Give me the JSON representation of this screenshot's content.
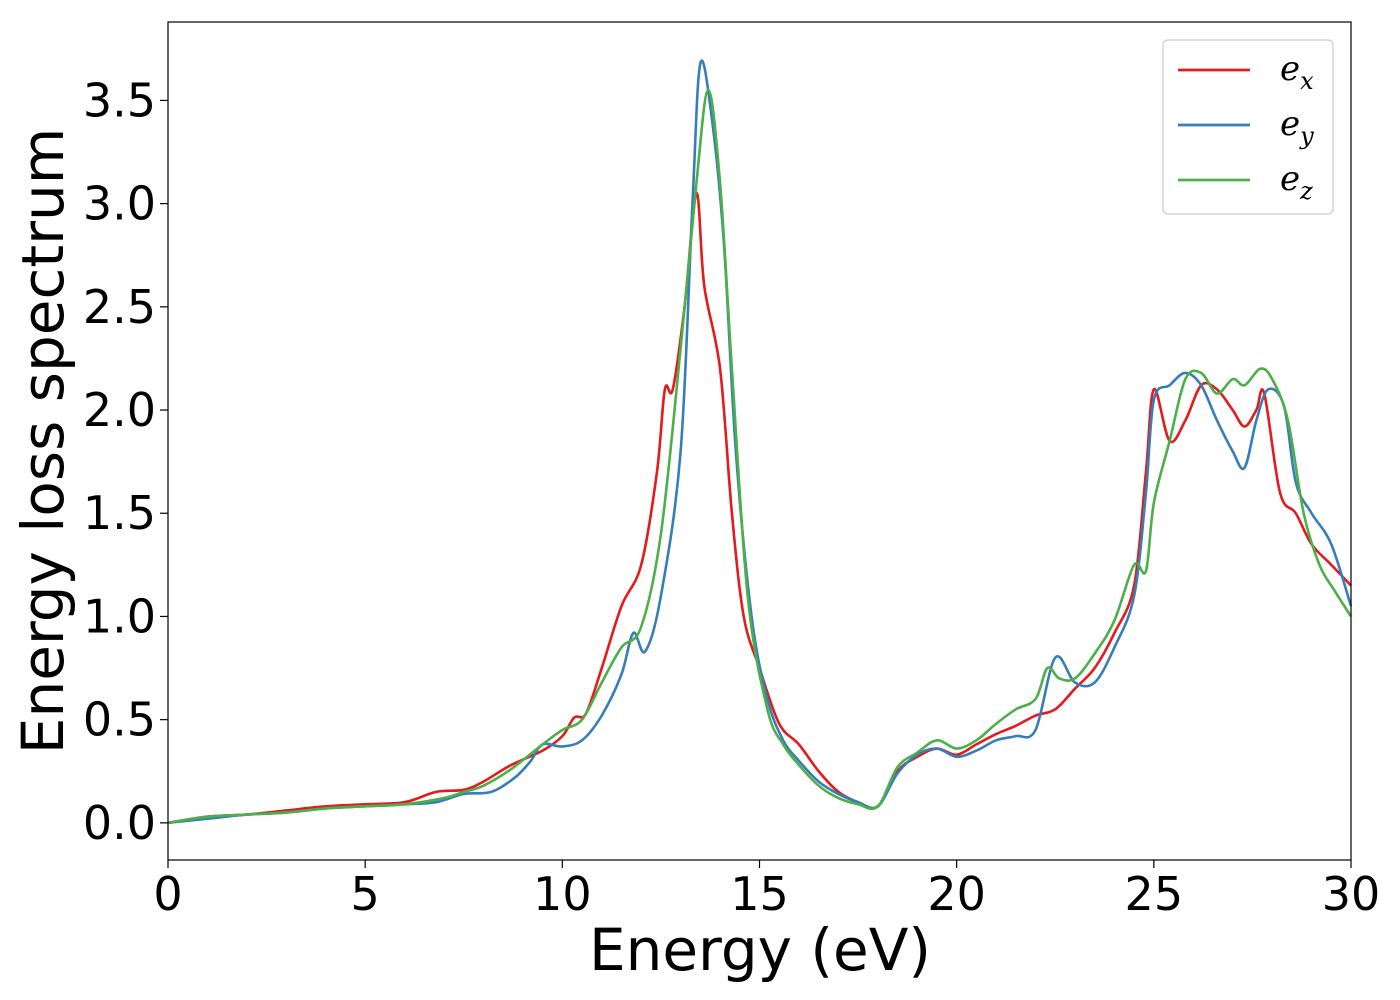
{
  "chart_data": {
    "type": "line",
    "xlabel": "Energy (eV)",
    "ylabel": "Energy loss spectrum",
    "xlim": [
      0,
      30
    ],
    "ylim": [
      -0.18,
      3.88
    ],
    "x_ticks": [
      "0",
      "5",
      "10",
      "15",
      "20",
      "25",
      "30"
    ],
    "y_ticks": [
      "0.0",
      "0.5",
      "1.0",
      "1.5",
      "2.0",
      "2.5",
      "3.0",
      "3.5"
    ],
    "grid": false,
    "legend_position": "top-right",
    "series": [
      {
        "name_base": "e",
        "name_sub": "x",
        "color": "#e41a1c",
        "points": [
          [
            0,
            0.0
          ],
          [
            1,
            0.03
          ],
          [
            2,
            0.04
          ],
          [
            3,
            0.06
          ],
          [
            4,
            0.08
          ],
          [
            5,
            0.09
          ],
          [
            6,
            0.1
          ],
          [
            6.8,
            0.15
          ],
          [
            7.5,
            0.16
          ],
          [
            8,
            0.2
          ],
          [
            8.7,
            0.28
          ],
          [
            9.5,
            0.35
          ],
          [
            10,
            0.42
          ],
          [
            10.3,
            0.51
          ],
          [
            10.6,
            0.53
          ],
          [
            11,
            0.75
          ],
          [
            11.5,
            1.05
          ],
          [
            12,
            1.25
          ],
          [
            12.4,
            1.7
          ],
          [
            12.6,
            2.1
          ],
          [
            12.8,
            2.1
          ],
          [
            13.1,
            2.5
          ],
          [
            13.4,
            3.05
          ],
          [
            13.6,
            2.6
          ],
          [
            14,
            2.2
          ],
          [
            14.3,
            1.5
          ],
          [
            14.6,
            1.0
          ],
          [
            15,
            0.75
          ],
          [
            15.5,
            0.48
          ],
          [
            16,
            0.38
          ],
          [
            16.5,
            0.25
          ],
          [
            17,
            0.15
          ],
          [
            17.5,
            0.1
          ],
          [
            18,
            0.08
          ],
          [
            18.5,
            0.25
          ],
          [
            19,
            0.32
          ],
          [
            19.5,
            0.36
          ],
          [
            20,
            0.33
          ],
          [
            20.5,
            0.38
          ],
          [
            21,
            0.43
          ],
          [
            21.5,
            0.47
          ],
          [
            22,
            0.52
          ],
          [
            22.5,
            0.55
          ],
          [
            23,
            0.65
          ],
          [
            23.5,
            0.75
          ],
          [
            24,
            0.92
          ],
          [
            24.5,
            1.15
          ],
          [
            24.8,
            1.7
          ],
          [
            25,
            2.1
          ],
          [
            25.4,
            1.85
          ],
          [
            25.8,
            1.95
          ],
          [
            26.2,
            2.12
          ],
          [
            26.6,
            2.1
          ],
          [
            27,
            2.0
          ],
          [
            27.3,
            1.92
          ],
          [
            27.6,
            2.0
          ],
          [
            27.8,
            2.08
          ],
          [
            28.2,
            1.6
          ],
          [
            28.6,
            1.5
          ],
          [
            29,
            1.35
          ],
          [
            29.5,
            1.25
          ],
          [
            30,
            1.15
          ]
        ]
      },
      {
        "name_base": "e",
        "name_sub": "y",
        "color": "#377eb8",
        "points": [
          [
            0,
            0.0
          ],
          [
            1,
            0.02
          ],
          [
            2,
            0.04
          ],
          [
            3,
            0.05
          ],
          [
            4,
            0.07
          ],
          [
            5,
            0.08
          ],
          [
            6,
            0.09
          ],
          [
            6.8,
            0.1
          ],
          [
            7.5,
            0.14
          ],
          [
            8.2,
            0.15
          ],
          [
            8.8,
            0.22
          ],
          [
            9.2,
            0.3
          ],
          [
            9.5,
            0.38
          ],
          [
            10,
            0.37
          ],
          [
            10.5,
            0.4
          ],
          [
            11,
            0.52
          ],
          [
            11.5,
            0.72
          ],
          [
            11.8,
            0.92
          ],
          [
            12.1,
            0.83
          ],
          [
            12.5,
            1.1
          ],
          [
            13,
            1.8
          ],
          [
            13.3,
            3.0
          ],
          [
            13.5,
            3.68
          ],
          [
            13.8,
            3.4
          ],
          [
            14.1,
            2.8
          ],
          [
            14.4,
            1.8
          ],
          [
            14.8,
            1.0
          ],
          [
            15.2,
            0.6
          ],
          [
            15.6,
            0.4
          ],
          [
            16,
            0.3
          ],
          [
            16.5,
            0.2
          ],
          [
            17,
            0.14
          ],
          [
            17.5,
            0.1
          ],
          [
            18,
            0.08
          ],
          [
            18.5,
            0.24
          ],
          [
            19,
            0.33
          ],
          [
            19.5,
            0.36
          ],
          [
            20,
            0.32
          ],
          [
            20.5,
            0.35
          ],
          [
            21,
            0.4
          ],
          [
            21.5,
            0.42
          ],
          [
            22,
            0.45
          ],
          [
            22.5,
            0.8
          ],
          [
            23,
            0.68
          ],
          [
            23.5,
            0.68
          ],
          [
            24,
            0.85
          ],
          [
            24.5,
            1.1
          ],
          [
            24.8,
            1.6
          ],
          [
            25,
            2.05
          ],
          [
            25.4,
            2.12
          ],
          [
            25.8,
            2.18
          ],
          [
            26.2,
            2.12
          ],
          [
            26.6,
            1.95
          ],
          [
            27,
            1.8
          ],
          [
            27.3,
            1.72
          ],
          [
            27.6,
            1.95
          ],
          [
            27.9,
            2.1
          ],
          [
            28.3,
            2.02
          ],
          [
            28.6,
            1.65
          ],
          [
            29,
            1.5
          ],
          [
            29.5,
            1.35
          ],
          [
            30,
            1.05
          ]
        ]
      },
      {
        "name_base": "e",
        "name_sub": "z",
        "color": "#4daf4a",
        "points": [
          [
            0,
            0.0
          ],
          [
            1,
            0.03
          ],
          [
            2,
            0.04
          ],
          [
            3,
            0.05
          ],
          [
            4,
            0.07
          ],
          [
            5,
            0.08
          ],
          [
            6,
            0.09
          ],
          [
            7,
            0.12
          ],
          [
            7.5,
            0.15
          ],
          [
            8,
            0.18
          ],
          [
            8.7,
            0.26
          ],
          [
            9.5,
            0.38
          ],
          [
            10,
            0.45
          ],
          [
            10.5,
            0.5
          ],
          [
            11,
            0.68
          ],
          [
            11.5,
            0.85
          ],
          [
            12,
            0.95
          ],
          [
            12.5,
            1.4
          ],
          [
            13,
            2.3
          ],
          [
            13.4,
            3.1
          ],
          [
            13.7,
            3.55
          ],
          [
            14,
            3.1
          ],
          [
            14.3,
            2.2
          ],
          [
            14.7,
            1.1
          ],
          [
            15.2,
            0.55
          ],
          [
            15.6,
            0.38
          ],
          [
            16,
            0.28
          ],
          [
            16.5,
            0.18
          ],
          [
            17,
            0.12
          ],
          [
            17.5,
            0.09
          ],
          [
            18,
            0.08
          ],
          [
            18.5,
            0.27
          ],
          [
            19,
            0.34
          ],
          [
            19.5,
            0.4
          ],
          [
            20,
            0.36
          ],
          [
            20.5,
            0.4
          ],
          [
            21,
            0.48
          ],
          [
            21.5,
            0.55
          ],
          [
            22,
            0.6
          ],
          [
            22.3,
            0.75
          ],
          [
            22.6,
            0.7
          ],
          [
            23,
            0.7
          ],
          [
            23.5,
            0.82
          ],
          [
            24,
            0.98
          ],
          [
            24.5,
            1.25
          ],
          [
            24.8,
            1.22
          ],
          [
            25,
            1.55
          ],
          [
            25.4,
            1.85
          ],
          [
            25.8,
            2.15
          ],
          [
            26.2,
            2.18
          ],
          [
            26.6,
            2.08
          ],
          [
            27,
            2.15
          ],
          [
            27.3,
            2.12
          ],
          [
            27.7,
            2.2
          ],
          [
            28,
            2.15
          ],
          [
            28.4,
            1.95
          ],
          [
            28.8,
            1.5
          ],
          [
            29.2,
            1.25
          ],
          [
            29.6,
            1.12
          ],
          [
            30,
            1.0
          ]
        ]
      }
    ]
  }
}
